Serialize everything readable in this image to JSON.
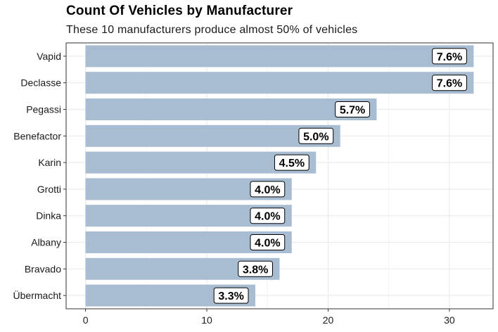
{
  "chart_data": {
    "type": "bar",
    "orientation": "horizontal",
    "title": "Count Of Vehicles by Manufacturer",
    "subtitle": "These 10 manufacturers produce almost 50% of vehicles",
    "xlabel": "",
    "ylabel": "",
    "categories": [
      "Vapid",
      "Declasse",
      "Pegassi",
      "Benefactor",
      "Karin",
      "Grotti",
      "Dinka",
      "Albany",
      "Bravado",
      "Übermacht"
    ],
    "values": [
      32,
      32,
      24,
      21,
      19,
      17,
      17,
      17,
      16,
      14
    ],
    "labels": [
      "7.6%",
      "7.6%",
      "5.7%",
      "5.0%",
      "4.5%",
      "4.0%",
      "4.0%",
      "4.0%",
      "3.8%",
      "3.3%"
    ],
    "xlim": [
      -1.6,
      33.6
    ],
    "xticks": [
      0,
      10,
      20,
      30
    ],
    "xtick_labels": [
      "0",
      "10",
      "20",
      "30"
    ],
    "grid": true,
    "legend": "none",
    "colors": {
      "bar": "#a8bcd2",
      "grid_major": "#ebebeb",
      "grid_minor": "#f4f4f4",
      "panel_border": "#333333",
      "label_fill": "#ffffff",
      "label_border": "#000000"
    }
  }
}
